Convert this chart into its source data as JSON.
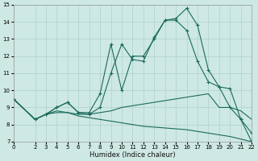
{
  "xlabel": "Humidex (Indice chaleur)",
  "ylabel": "",
  "bg_color": "#cee8e4",
  "grid_color": "#aed0cc",
  "line_color": "#1a6b5a",
  "ylim": [
    7,
    15
  ],
  "xlim": [
    0,
    22
  ],
  "yticks": [
    7,
    8,
    9,
    10,
    11,
    12,
    13,
    14,
    15
  ],
  "xticks": [
    0,
    2,
    3,
    4,
    5,
    6,
    7,
    8,
    9,
    10,
    11,
    12,
    13,
    14,
    15,
    16,
    17,
    18,
    19,
    20,
    21,
    22
  ],
  "lines": [
    {
      "x": [
        0,
        2,
        3,
        4,
        5,
        6,
        7,
        8,
        9,
        10,
        11,
        12,
        13,
        14,
        15,
        16,
        17,
        18,
        19,
        20,
        21,
        22
      ],
      "y": [
        9.5,
        8.3,
        8.6,
        9.0,
        9.3,
        8.7,
        8.7,
        9.8,
        12.7,
        10.0,
        12.0,
        12.0,
        13.0,
        14.1,
        14.2,
        14.8,
        13.8,
        11.2,
        10.2,
        10.1,
        8.3,
        7.0
      ],
      "marker": true
    },
    {
      "x": [
        0,
        2,
        3,
        4,
        5,
        6,
        7,
        8,
        9,
        10,
        11,
        12,
        13,
        14,
        15,
        16,
        17,
        18,
        19,
        20,
        21,
        22
      ],
      "y": [
        9.5,
        8.3,
        8.6,
        9.0,
        9.3,
        8.7,
        8.6,
        9.0,
        11.0,
        12.7,
        11.8,
        11.7,
        13.1,
        14.1,
        14.1,
        13.5,
        11.7,
        10.5,
        10.2,
        9.0,
        8.3,
        7.5
      ],
      "marker": true
    },
    {
      "x": [
        0,
        2,
        3,
        4,
        5,
        6,
        7,
        8,
        9,
        10,
        11,
        12,
        13,
        14,
        15,
        16,
        17,
        18,
        19,
        20,
        21,
        22
      ],
      "y": [
        9.5,
        8.3,
        8.6,
        8.8,
        8.7,
        8.6,
        8.6,
        8.7,
        8.8,
        9.0,
        9.1,
        9.2,
        9.3,
        9.4,
        9.5,
        9.6,
        9.7,
        9.8,
        9.0,
        9.0,
        8.8,
        8.3
      ],
      "marker": false
    },
    {
      "x": [
        0,
        2,
        3,
        4,
        5,
        6,
        7,
        8,
        9,
        10,
        11,
        12,
        13,
        14,
        15,
        16,
        17,
        18,
        19,
        20,
        21,
        22
      ],
      "y": [
        9.5,
        8.3,
        8.6,
        8.7,
        8.7,
        8.5,
        8.4,
        8.3,
        8.2,
        8.1,
        8.0,
        7.9,
        7.85,
        7.8,
        7.75,
        7.7,
        7.6,
        7.5,
        7.4,
        7.3,
        7.15,
        7.0
      ],
      "marker": false
    }
  ]
}
